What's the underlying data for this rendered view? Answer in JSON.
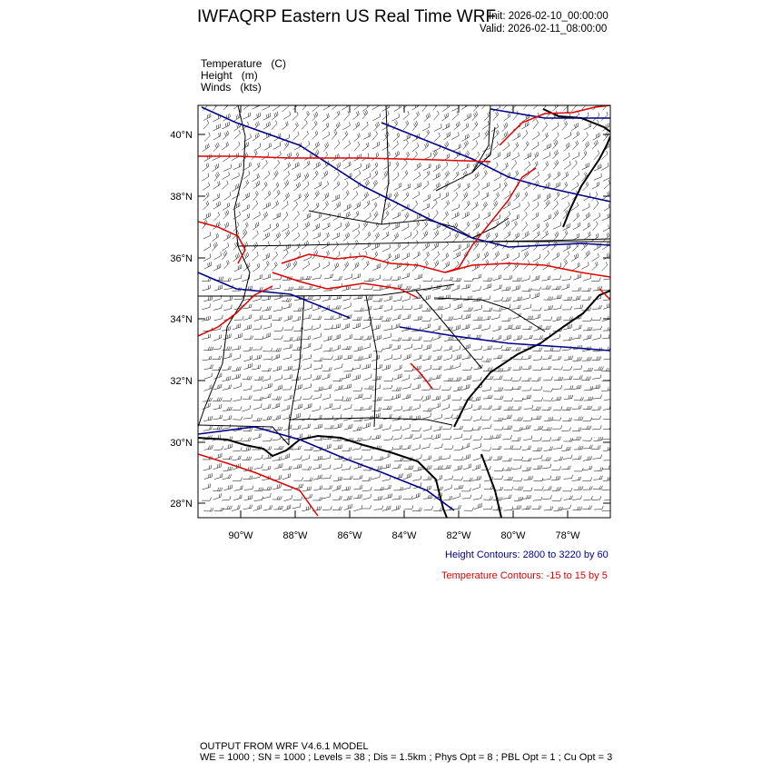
{
  "header": {
    "title": "IWFAQRP Eastern US Real Time WRF",
    "init": "Init: 2026-02-10_00:00:00",
    "valid": "Valid: 2026-02-11_08:00:00"
  },
  "fields": [
    {
      "name": "Temperature",
      "unit": "(C)"
    },
    {
      "name": "Height",
      "unit": "(m)"
    },
    {
      "name": "Winds",
      "unit": "(kts)"
    }
  ],
  "axes": {
    "lat_ticks": [
      "40°N",
      "38°N",
      "36°N",
      "34°N",
      "32°N",
      "30°N",
      "28°N"
    ],
    "lon_ticks": [
      "90°W",
      "88°W",
      "86°W",
      "84°W",
      "82°W",
      "80°W",
      "78°W"
    ]
  },
  "contours": {
    "height_label": "Height Contours: 2800 to 3220 by 60",
    "height_color": "#00008b",
    "temperature_label": "Temperature Contours: -15 to 15 by 5",
    "temperature_color": "#e00000"
  },
  "footer": {
    "line1": "OUTPUT FROM WRF V4.6.1 MODEL",
    "line2": "WE = 1000 ; SN = 1000 ; Levels = 38 ; Dis = 1.5km ; Phys Opt = 8 ; PBL Opt = 1 ; Cu Opt = 3"
  }
}
